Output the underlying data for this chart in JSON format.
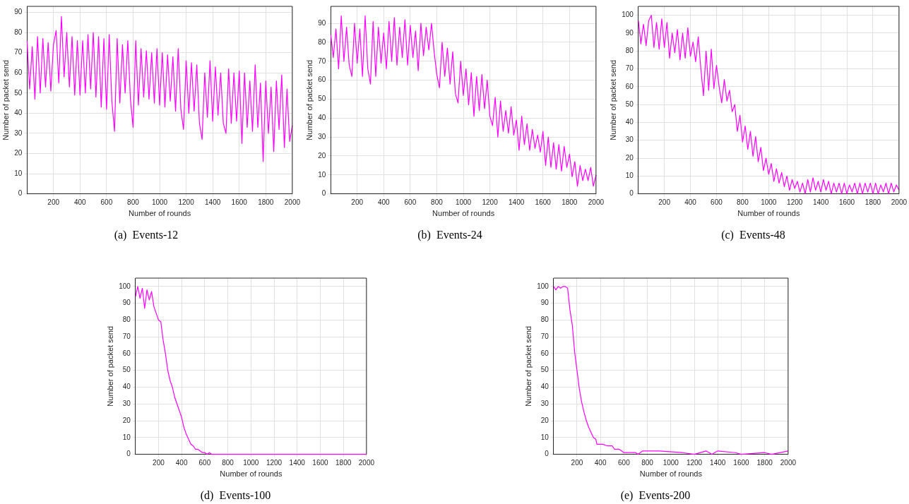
{
  "chart_data": [
    {
      "type": "line",
      "title": "(a)  Events-12",
      "xlabel": "Number of rounds",
      "ylabel": "Number of packet send",
      "color": "#ff00ff",
      "grid": true,
      "xlim": [
        1,
        2000
      ],
      "ylim": [
        0,
        93
      ],
      "xticks": [
        200,
        400,
        600,
        800,
        1000,
        1200,
        1400,
        1600,
        1800,
        2000
      ],
      "yticks": [
        0,
        10,
        20,
        30,
        40,
        50,
        60,
        70,
        80,
        90
      ],
      "x": [
        1,
        20,
        40,
        60,
        80,
        100,
        120,
        140,
        160,
        180,
        200,
        220,
        240,
        260,
        280,
        300,
        320,
        340,
        360,
        380,
        400,
        420,
        440,
        460,
        480,
        500,
        520,
        540,
        560,
        580,
        600,
        620,
        640,
        660,
        680,
        700,
        720,
        740,
        760,
        780,
        800,
        820,
        840,
        860,
        880,
        900,
        920,
        940,
        960,
        980,
        1000,
        1020,
        1040,
        1060,
        1080,
        1100,
        1120,
        1140,
        1160,
        1180,
        1200,
        1220,
        1240,
        1260,
        1280,
        1300,
        1320,
        1340,
        1360,
        1380,
        1400,
        1420,
        1440,
        1460,
        1480,
        1500,
        1520,
        1540,
        1560,
        1580,
        1600,
        1620,
        1640,
        1660,
        1680,
        1700,
        1720,
        1740,
        1760,
        1780,
        1800,
        1820,
        1840,
        1860,
        1880,
        1900,
        1920,
        1940,
        1960,
        1980,
        2000
      ],
      "values": [
        76,
        52,
        73,
        47,
        78,
        50,
        77,
        53,
        75,
        51,
        74,
        81,
        55,
        88,
        58,
        80,
        53,
        78,
        49,
        76,
        49,
        76,
        50,
        79,
        52,
        80,
        48,
        78,
        43,
        77,
        42,
        79,
        46,
        31,
        77,
        45,
        74,
        50,
        76,
        47,
        33,
        76,
        44,
        72,
        48,
        71,
        47,
        70,
        45,
        72,
        44,
        70,
        43,
        69,
        46,
        68,
        41,
        72,
        42,
        32,
        66,
        40,
        65,
        41,
        64,
        35,
        27,
        60,
        38,
        66,
        36,
        63,
        39,
        60,
        35,
        30,
        62,
        35,
        60,
        36,
        61,
        25,
        60,
        33,
        56,
        31,
        64,
        33,
        55,
        16,
        56,
        30,
        53,
        21,
        56,
        32,
        59,
        23,
        52,
        26,
        34
      ]
    },
    {
      "type": "line",
      "title": "(b)  Events-24",
      "xlabel": "Number of rounds",
      "ylabel": "Number of packet send",
      "color": "#ff00ff",
      "grid": true,
      "xlim": [
        1,
        2000
      ],
      "ylim": [
        0,
        99
      ],
      "xticks": [
        200,
        400,
        600,
        800,
        1000,
        1200,
        1400,
        1600,
        1800,
        2000
      ],
      "yticks": [
        0,
        10,
        20,
        30,
        40,
        50,
        60,
        70,
        80,
        90
      ],
      "x": [
        1,
        20,
        40,
        60,
        80,
        100,
        120,
        140,
        160,
        180,
        200,
        220,
        240,
        260,
        280,
        300,
        320,
        340,
        360,
        380,
        400,
        420,
        440,
        460,
        480,
        500,
        520,
        540,
        560,
        580,
        600,
        620,
        640,
        660,
        680,
        700,
        720,
        740,
        760,
        780,
        800,
        820,
        840,
        860,
        880,
        900,
        920,
        940,
        960,
        980,
        1000,
        1020,
        1040,
        1060,
        1080,
        1100,
        1120,
        1140,
        1160,
        1180,
        1200,
        1220,
        1240,
        1260,
        1280,
        1300,
        1320,
        1340,
        1360,
        1380,
        1400,
        1420,
        1440,
        1460,
        1480,
        1500,
        1520,
        1540,
        1560,
        1580,
        1600,
        1620,
        1640,
        1660,
        1680,
        1700,
        1720,
        1740,
        1760,
        1780,
        1800,
        1820,
        1840,
        1860,
        1880,
        1900,
        1920,
        1940,
        1960,
        1980,
        2000
      ],
      "values": [
        84,
        72,
        87,
        66,
        94,
        70,
        88,
        68,
        62,
        90,
        69,
        87,
        62,
        94,
        66,
        58,
        91,
        62,
        88,
        69,
        85,
        66,
        91,
        70,
        93,
        68,
        88,
        72,
        92,
        68,
        89,
        72,
        86,
        65,
        90,
        73,
        88,
        76,
        90,
        75,
        63,
        56,
        80,
        62,
        77,
        58,
        75,
        53,
        48,
        70,
        52,
        66,
        47,
        64,
        41,
        62,
        44,
        63,
        45,
        60,
        41,
        36,
        51,
        30,
        49,
        33,
        44,
        32,
        46,
        31,
        39,
        23,
        41,
        26,
        37,
        23,
        34,
        24,
        31,
        22,
        33,
        15,
        30,
        14,
        27,
        13,
        26,
        12,
        25,
        14,
        21,
        9,
        17,
        4,
        15,
        7,
        13,
        7,
        14,
        4,
        10
      ]
    },
    {
      "type": "line",
      "title": "(c)  Events-48",
      "xlabel": "Number of rounds",
      "ylabel": "Number of packet send",
      "color": "#ff00ff",
      "grid": true,
      "xlim": [
        1,
        2000
      ],
      "ylim": [
        0,
        105
      ],
      "xticks": [
        200,
        400,
        600,
        800,
        1000,
        1200,
        1400,
        1600,
        1800,
        2000
      ],
      "yticks": [
        0,
        10,
        20,
        30,
        40,
        50,
        60,
        70,
        80,
        90,
        100
      ],
      "x": [
        1,
        20,
        40,
        60,
        80,
        100,
        120,
        140,
        160,
        180,
        200,
        220,
        240,
        260,
        280,
        300,
        320,
        340,
        360,
        380,
        400,
        420,
        440,
        460,
        480,
        500,
        520,
        540,
        560,
        580,
        600,
        620,
        640,
        660,
        680,
        700,
        720,
        740,
        760,
        780,
        800,
        820,
        840,
        860,
        880,
        900,
        920,
        940,
        960,
        980,
        1000,
        1020,
        1040,
        1060,
        1080,
        1100,
        1120,
        1140,
        1160,
        1180,
        1200,
        1220,
        1240,
        1260,
        1280,
        1300,
        1320,
        1340,
        1360,
        1380,
        1400,
        1420,
        1440,
        1460,
        1480,
        1500,
        1520,
        1540,
        1560,
        1580,
        1600,
        1620,
        1640,
        1660,
        1680,
        1700,
        1720,
        1740,
        1760,
        1780,
        1800,
        1820,
        1840,
        1860,
        1880,
        1900,
        1920,
        1940,
        1960,
        1980,
        2000
      ],
      "values": [
        97,
        84,
        95,
        83,
        97,
        100,
        82,
        96,
        81,
        98,
        82,
        96,
        76,
        90,
        79,
        92,
        75,
        90,
        76,
        93,
        77,
        85,
        74,
        88,
        70,
        55,
        80,
        58,
        81,
        59,
        72,
        60,
        51,
        64,
        52,
        58,
        46,
        50,
        35,
        44,
        29,
        38,
        25,
        35,
        21,
        32,
        18,
        26,
        13,
        20,
        11,
        17,
        7,
        14,
        6,
        12,
        4,
        10,
        2,
        8,
        3,
        7,
        1,
        6,
        0,
        8,
        1,
        9,
        2,
        7,
        1,
        8,
        2,
        7,
        0,
        6,
        1,
        6,
        0,
        6,
        0,
        5,
        1,
        6,
        0,
        6,
        0,
        6,
        1,
        6,
        0,
        6,
        0,
        5,
        1,
        6,
        0,
        6,
        1,
        5,
        2
      ]
    },
    {
      "type": "line",
      "title": "(d)  Events-100",
      "xlabel": "Number of rounds",
      "ylabel": "Number of packet send",
      "color": "#ff00ff",
      "grid": true,
      "xlim": [
        1,
        2000
      ],
      "ylim": [
        0,
        105
      ],
      "xticks": [
        200,
        400,
        600,
        800,
        1000,
        1200,
        1400,
        1600,
        1800,
        2000
      ],
      "yticks": [
        0,
        10,
        20,
        30,
        40,
        50,
        60,
        70,
        80,
        90,
        100
      ],
      "x": [
        1,
        20,
        40,
        60,
        80,
        100,
        120,
        140,
        160,
        180,
        200,
        220,
        240,
        260,
        280,
        300,
        320,
        340,
        360,
        380,
        400,
        420,
        440,
        460,
        480,
        500,
        520,
        540,
        560,
        580,
        600,
        620,
        640,
        660,
        700,
        1000,
        1500,
        2000
      ],
      "values": [
        94,
        100,
        93,
        99,
        87,
        98,
        92,
        97,
        88,
        84,
        80,
        79,
        68,
        60,
        50,
        44,
        40,
        34,
        30,
        26,
        22,
        16,
        12,
        9,
        6,
        5,
        3,
        3,
        2,
        1,
        1,
        0,
        1,
        0,
        0,
        0,
        0,
        0
      ]
    },
    {
      "type": "line",
      "title": "(e)  Events-200",
      "xlabel": "Number of rounds",
      "ylabel": "Number of packet send",
      "color": "#ff00ff",
      "grid": true,
      "xlim": [
        1,
        2000
      ],
      "ylim": [
        0,
        105
      ],
      "xticks": [
        200,
        400,
        600,
        800,
        1000,
        1200,
        1400,
        1600,
        1800,
        2000
      ],
      "yticks": [
        0,
        10,
        20,
        30,
        40,
        50,
        60,
        70,
        80,
        90,
        100
      ],
      "x": [
        1,
        20,
        40,
        60,
        80,
        100,
        120,
        140,
        160,
        180,
        200,
        220,
        240,
        260,
        280,
        300,
        320,
        340,
        360,
        370,
        380,
        420,
        460,
        500,
        520,
        560,
        580,
        600,
        700,
        720,
        760,
        900,
        1100,
        1200,
        1300,
        1350,
        1400,
        1550,
        1600,
        1800,
        1860,
        2000
      ],
      "values": [
        100,
        98,
        100,
        99,
        100,
        100,
        99,
        86,
        77,
        61,
        50,
        39,
        31,
        25,
        20,
        16,
        13,
        10,
        9,
        6,
        6,
        6,
        5,
        5,
        3,
        3,
        2,
        1,
        1,
        0,
        2,
        2,
        1,
        0,
        2,
        0,
        2,
        1,
        0,
        1,
        0,
        2
      ]
    }
  ]
}
